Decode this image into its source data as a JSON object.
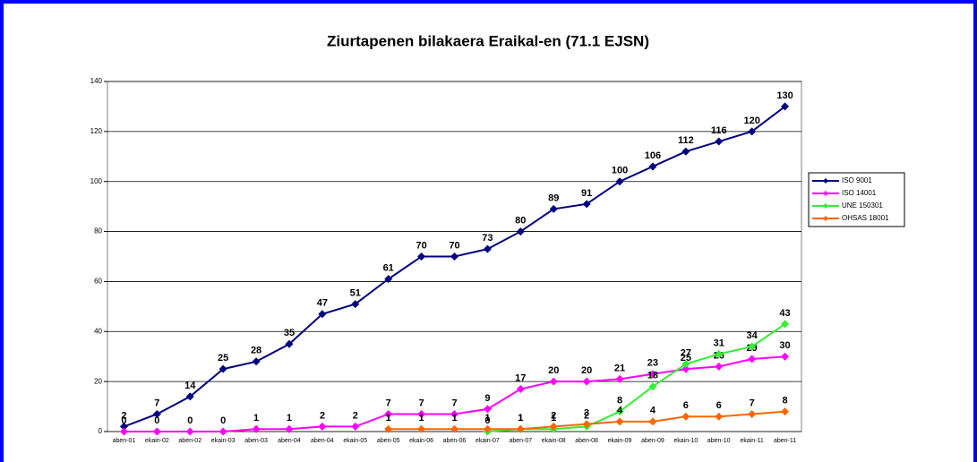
{
  "chart_data": {
    "type": "line",
    "title": "Ziurtapenen bilakaera Eraikal-en (71.1 EJSN)",
    "categories": [
      "aben-01",
      "ekain-02",
      "aben-02",
      "ekain-03",
      "aben-03",
      "aben-04",
      "aben-04",
      "ekain-05",
      "aben-05",
      "ekain-06",
      "aben-06",
      "ekain-07",
      "aben-07",
      "ekain-08",
      "aben-08",
      "ekain-09",
      "aben-09",
      "ekain-10",
      "aben-10",
      "ekain-11",
      "aben-11"
    ],
    "series": [
      {
        "name": "ISO 9001",
        "color": "#000080",
        "values": [
          2,
          7,
          14,
          25,
          28,
          35,
          47,
          51,
          61,
          70,
          70,
          73,
          80,
          89,
          91,
          100,
          106,
          112,
          116,
          120,
          130
        ]
      },
      {
        "name": "ISO 14001",
        "color": "#ff00ff",
        "values": [
          0,
          0,
          0,
          0,
          1,
          1,
          2,
          2,
          7,
          7,
          7,
          9,
          17,
          20,
          20,
          21,
          23,
          25,
          26,
          29,
          30
        ]
      },
      {
        "name": "UNE 150301",
        "color": "#33ee33",
        "values": [
          null,
          null,
          null,
          null,
          null,
          null,
          null,
          null,
          null,
          null,
          null,
          0,
          1,
          1,
          2,
          8,
          18,
          27,
          31,
          34,
          43
        ]
      },
      {
        "name": "OHSAS 18001",
        "color": "#ff6600",
        "values": [
          null,
          null,
          null,
          null,
          null,
          null,
          null,
          null,
          1,
          1,
          1,
          1,
          1,
          2,
          3,
          4,
          4,
          6,
          6,
          7,
          8
        ]
      }
    ],
    "ylim": [
      0,
      140
    ],
    "yticks": [
      0,
      20,
      40,
      60,
      80,
      100,
      120,
      140
    ],
    "grid": true,
    "legend": "right"
  }
}
